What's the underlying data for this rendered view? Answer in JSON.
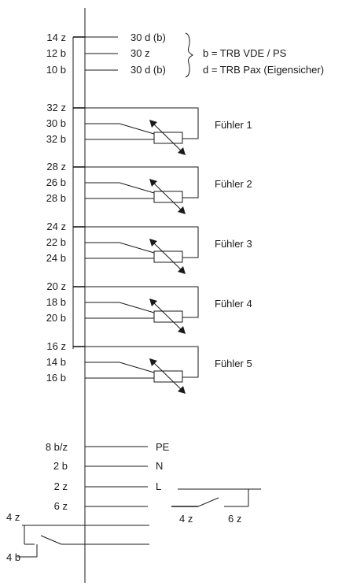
{
  "top_group": {
    "pins": [
      "14 z",
      "12 b",
      "10 b"
    ],
    "signals": [
      "30 d (b)",
      "30 z",
      "30 d (b)"
    ],
    "legend": [
      "b = TRB VDE / PS",
      "d = TRB Pax (Eigensicher)"
    ]
  },
  "sensors": [
    {
      "label": "Fühler 1",
      "pins": [
        "32 z",
        "30 b",
        "32 b"
      ]
    },
    {
      "label": "Fühler 2",
      "pins": [
        "28 z",
        "26 b",
        "28 b"
      ]
    },
    {
      "label": "Fühler 3",
      "pins": [
        "24 z",
        "22 b",
        "24 b"
      ]
    },
    {
      "label": "Fühler 4",
      "pins": [
        "20 z",
        "18 b",
        "20 b"
      ]
    },
    {
      "label": "Fühler 5",
      "pins": [
        "16 z",
        "14 b",
        "16 b"
      ]
    }
  ],
  "power": {
    "pins": [
      "8 b/z",
      "2 b",
      "2 z",
      "6 z"
    ],
    "signals": [
      "PE",
      "N",
      "L"
    ]
  },
  "relay": {
    "contact_labels": [
      "4 z",
      "6 z"
    ]
  },
  "left_contact": {
    "labels": [
      "4 z",
      "4 b"
    ]
  }
}
